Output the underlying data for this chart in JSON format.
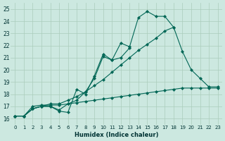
{
  "xlabel": "Humidex (Indice chaleur)",
  "bg_color": "#cce8e0",
  "grid_color": "#aaccbb",
  "line_color": "#006655",
  "xlim": [
    -0.5,
    23.5
  ],
  "ylim": [
    15.5,
    25.5
  ],
  "x_ticks": [
    0,
    1,
    2,
    3,
    4,
    5,
    6,
    7,
    8,
    9,
    10,
    11,
    12,
    13,
    14,
    15,
    16,
    17,
    18,
    19,
    20,
    21,
    22,
    23
  ],
  "y_ticks": [
    16,
    17,
    18,
    19,
    20,
    21,
    22,
    23,
    24,
    25
  ],
  "series": [
    [
      16.2,
      16.2,
      16.8,
      17.0,
      17.0,
      16.6,
      16.5,
      18.4,
      18.0,
      19.5,
      21.3,
      20.8,
      22.2,
      21.9,
      24.3,
      24.8,
      24.4,
      24.4,
      23.5,
      null,
      null,
      null,
      null,
      null
    ],
    [
      16.2,
      16.2,
      16.8,
      17.0,
      17.0,
      16.7,
      17.2,
      17.5,
      18.2,
      19.3,
      21.1,
      20.8,
      21.0,
      21.8,
      null,
      null,
      null,
      null,
      null,
      null,
      null,
      null,
      null,
      null
    ],
    [
      16.2,
      16.2,
      16.8,
      17.0,
      17.2,
      17.2,
      17.5,
      17.8,
      18.2,
      18.7,
      19.2,
      19.8,
      20.4,
      21.0,
      21.6,
      22.1,
      22.6,
      23.2,
      23.5,
      21.5,
      20.0,
      19.3,
      18.6,
      18.6
    ],
    [
      16.2,
      16.2,
      17.0,
      17.1,
      17.1,
      17.1,
      17.2,
      17.3,
      17.4,
      17.5,
      17.6,
      17.7,
      17.8,
      17.9,
      18.0,
      18.1,
      18.2,
      18.3,
      18.4,
      18.5,
      18.5,
      18.5,
      18.5,
      18.5
    ]
  ]
}
